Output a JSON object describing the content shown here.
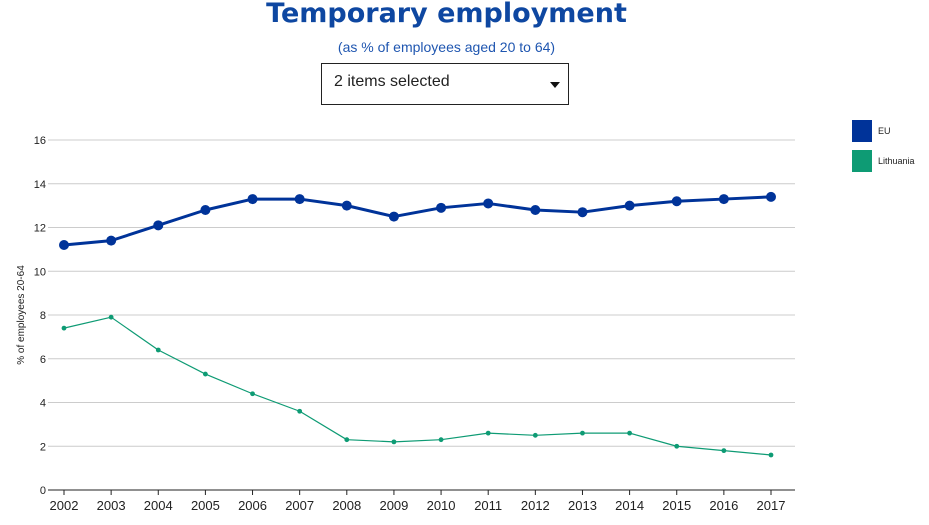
{
  "title": "Temporary employment",
  "subtitle": "(as % of employees aged 20 to 64)",
  "selector": {
    "value": "2 items selected"
  },
  "legend": [
    {
      "label": "EU",
      "color": "#003399"
    },
    {
      "label": "Lithuania",
      "color": "#0e9b74"
    }
  ],
  "chart_data": {
    "type": "line",
    "x": [
      "2002",
      "2003",
      "2004",
      "2005",
      "2006",
      "2007",
      "2008",
      "2009",
      "2010",
      "2011",
      "2012",
      "2013",
      "2014",
      "2015",
      "2016",
      "2017"
    ],
    "ylabel": "% of employees 20-64",
    "ylim": [
      0,
      16
    ],
    "yticks": [
      0,
      2,
      4,
      6,
      8,
      10,
      12,
      14,
      16
    ],
    "grid": true,
    "legend_position": "right",
    "series": [
      {
        "name": "EU",
        "color": "#003399",
        "values": [
          11.2,
          11.4,
          12.1,
          12.8,
          13.3,
          13.3,
          13.0,
          12.5,
          12.9,
          13.1,
          12.8,
          12.7,
          13.0,
          13.2,
          13.3,
          13.4
        ]
      },
      {
        "name": "Lithuania",
        "color": "#0e9b74",
        "values": [
          7.4,
          7.9,
          6.4,
          5.3,
          4.4,
          3.6,
          2.3,
          2.2,
          2.3,
          2.6,
          2.5,
          2.6,
          2.6,
          2.0,
          1.8,
          1.6
        ]
      }
    ]
  }
}
